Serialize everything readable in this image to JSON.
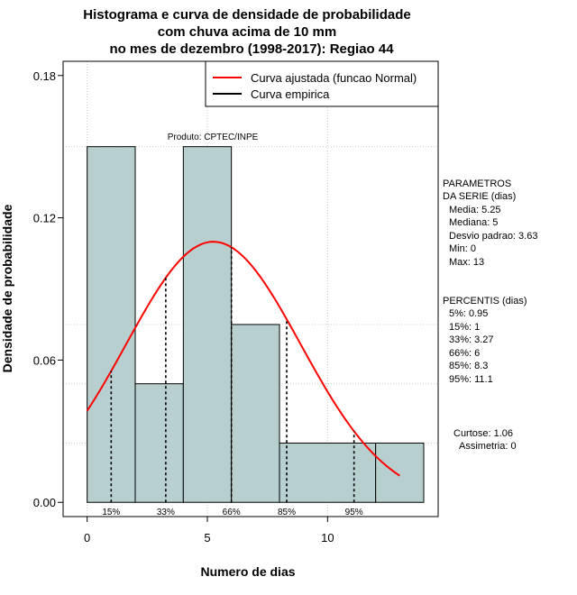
{
  "chart_data": {
    "type": "bar",
    "title_lines": [
      "Histograma e curva de densidade de probabilidade",
      "com chuva acima de 10 mm",
      "no mes de dezembro (1998-2017): Regiao 44"
    ],
    "xlabel": "Numero de dias",
    "ylabel": "Densidade de probabilidade",
    "xlim": [
      -1,
      14.6
    ],
    "ylim": [
      -0.006,
      0.186
    ],
    "x_ticks": [
      0,
      5,
      10
    ],
    "y_ticks": [
      0.0,
      0.06,
      0.12,
      0.18
    ],
    "y_tick_labels": [
      "0.00",
      "0.06",
      "0.12",
      "0.18"
    ],
    "bins": [
      {
        "start": 0,
        "end": 2,
        "density": 0.15
      },
      {
        "start": 2,
        "end": 4,
        "density": 0.05
      },
      {
        "start": 4,
        "end": 6,
        "density": 0.15
      },
      {
        "start": 6,
        "end": 8,
        "density": 0.075
      },
      {
        "start": 8,
        "end": 12,
        "density": 0.025
      },
      {
        "start": 12,
        "end": 14,
        "density": 0.025
      }
    ],
    "normal_fit": {
      "mean": 5.25,
      "sd": 3.63,
      "x_from": 0,
      "x_to": 13
    },
    "percentile_markers": [
      {
        "label": "15%",
        "x": 1
      },
      {
        "label": "33%",
        "x": 3.27
      },
      {
        "label": "66%",
        "x": 6
      },
      {
        "label": "85%",
        "x": 8.3
      },
      {
        "label": "95%",
        "x": 11.1
      }
    ],
    "legend": [
      {
        "label": "Curva ajustada (funcao Normal)",
        "color": "#ff0000"
      },
      {
        "label": "Curva empirica",
        "color": "#000000"
      }
    ],
    "annotation": "Produto: CPTEC/INPE",
    "grid": true,
    "bar_color": "#b8cfcf"
  },
  "parameters": {
    "heading_1": "PARAMETROS",
    "heading_2": "DA SERIE (dias)",
    "lines": [
      "Media: 5.25",
      "Mediana: 5",
      "Desvio padrao: 3.63",
      "Min: 0",
      "Max: 13"
    ]
  },
  "percentis": {
    "heading": "PERCENTIS (dias)",
    "lines": [
      "5%: 0.95",
      "15%: 1",
      "33%: 3.27",
      "66%: 6",
      "85%: 8.3",
      "95%: 11.1"
    ]
  },
  "shape": {
    "curtose": "Curtose: 1.06",
    "assimetria": "Assimetria: 0"
  }
}
